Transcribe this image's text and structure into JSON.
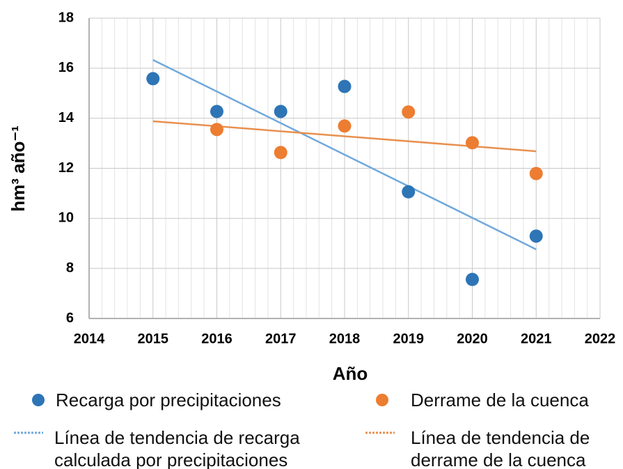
{
  "chart_data": {
    "type": "scatter",
    "x_label": "Año",
    "y_label": "hm³ año⁻¹",
    "xlim": [
      2014,
      2022
    ],
    "xticks": [
      2014,
      2015,
      2016,
      2017,
      2018,
      2019,
      2020,
      2021,
      2022
    ],
    "ylim": [
      6,
      18
    ],
    "yticks": [
      6,
      8,
      10,
      12,
      14,
      16,
      18
    ],
    "grid": true,
    "x_minor_divisions": 5,
    "series": [
      {
        "name": "Recarga por precipitaciones",
        "color": "#2e75b6",
        "x": [
          2015,
          2016,
          2017,
          2018,
          2019,
          2020,
          2021
        ],
        "values": [
          15.58,
          14.27,
          14.27,
          15.27,
          11.06,
          7.56,
          9.29
        ]
      },
      {
        "name": "Derrame de la cuenca",
        "color": "#ed7d31",
        "x": [
          2016,
          2017,
          2018,
          2019,
          2020,
          2021
        ],
        "values": [
          13.55,
          12.63,
          13.69,
          14.25,
          13.02,
          11.79
        ]
      }
    ],
    "trendlines": [
      {
        "name": "Línea de tendencia de recarga calculada por precipitaciones",
        "color": "#6fa8dc",
        "x": [
          2015,
          2021
        ],
        "values": [
          16.33,
          8.76
        ]
      },
      {
        "name": "Línea de tendencia de derrame de la cuenca",
        "color": "#e8904f",
        "x": [
          2015,
          2021
        ],
        "values": [
          13.88,
          12.68
        ]
      }
    ]
  }
}
